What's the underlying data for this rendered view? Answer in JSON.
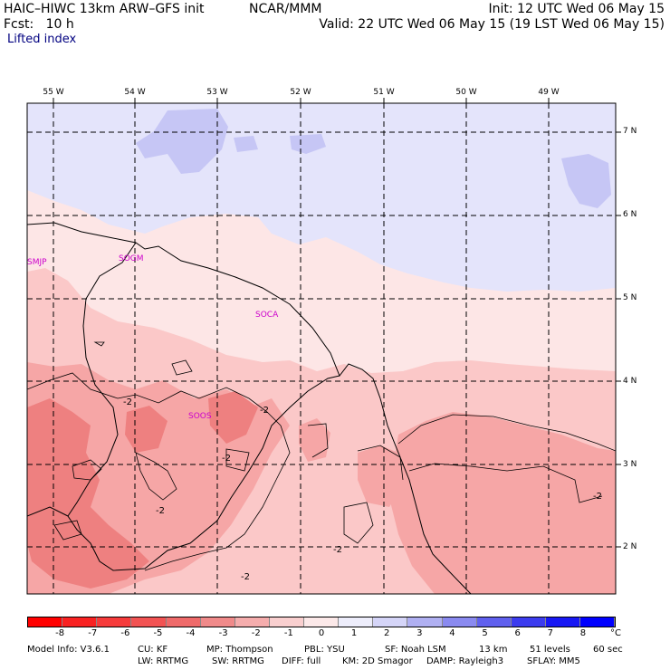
{
  "header": {
    "model": "HAIC–HIWC 13km ARW–GFS init",
    "org": "NCAR/MMM",
    "init": "Init: 12 UTC Wed 06 May 15",
    "fcst": "Fcst:   10 h",
    "valid": "Valid: 22 UTC Wed 06 May 15 (19 LST Wed 06 May 15)",
    "field": "Lifted index"
  },
  "map": {
    "lon_labels": [
      "55 W",
      "54 W",
      "53 W",
      "52 W",
      "51 W",
      "50 W",
      "49 W"
    ],
    "lat_labels": [
      "7 N",
      "6 N",
      "5 N",
      "4 N",
      "3 N",
      "2 N"
    ],
    "stations": [
      "SMJP",
      "SOGM",
      "SOCA",
      "SOOS"
    ],
    "contour_label": "-2",
    "colors": {
      "pos1": "#e4e4fb",
      "pos2": "#c6c6f5",
      "neg1": "#fde6e6",
      "neg2": "#fbc8c8",
      "neg3": "#f6a6a6",
      "neg4": "#ee8080"
    }
  },
  "colorbar": {
    "ticks": [
      "-8",
      "-7",
      "-6",
      "-5",
      "-4",
      "-3",
      "-2",
      "-1",
      "0",
      "1",
      "2",
      "3",
      "4",
      "5",
      "6",
      "7",
      "8"
    ],
    "unit": "°C",
    "colors": [
      "#ff0000",
      "#f92222",
      "#f63b3b",
      "#f25353",
      "#ef6a6a",
      "#f08a8a",
      "#f5adad",
      "#f9cfcf",
      "#fce9e9",
      "#ededfb",
      "#d5d5f8",
      "#b0b0f2",
      "#8a8af0",
      "#6060ee",
      "#3c3cef",
      "#1818f4",
      "#0000ff"
    ]
  },
  "footer": {
    "line1": [
      "Model Info: V3.6.1",
      "CU: KF",
      "MP: Thompson",
      "PBL: YSU",
      "SF: Noah LSM",
      "13 km",
      "51 levels",
      "60 sec"
    ],
    "line2": [
      "LW: RRTMG",
      "SW: RRTMG",
      "DIFF: full",
      "KM: 2D Smagor",
      "DAMP: Rayleigh3",
      "SFLAY: MM5"
    ]
  }
}
